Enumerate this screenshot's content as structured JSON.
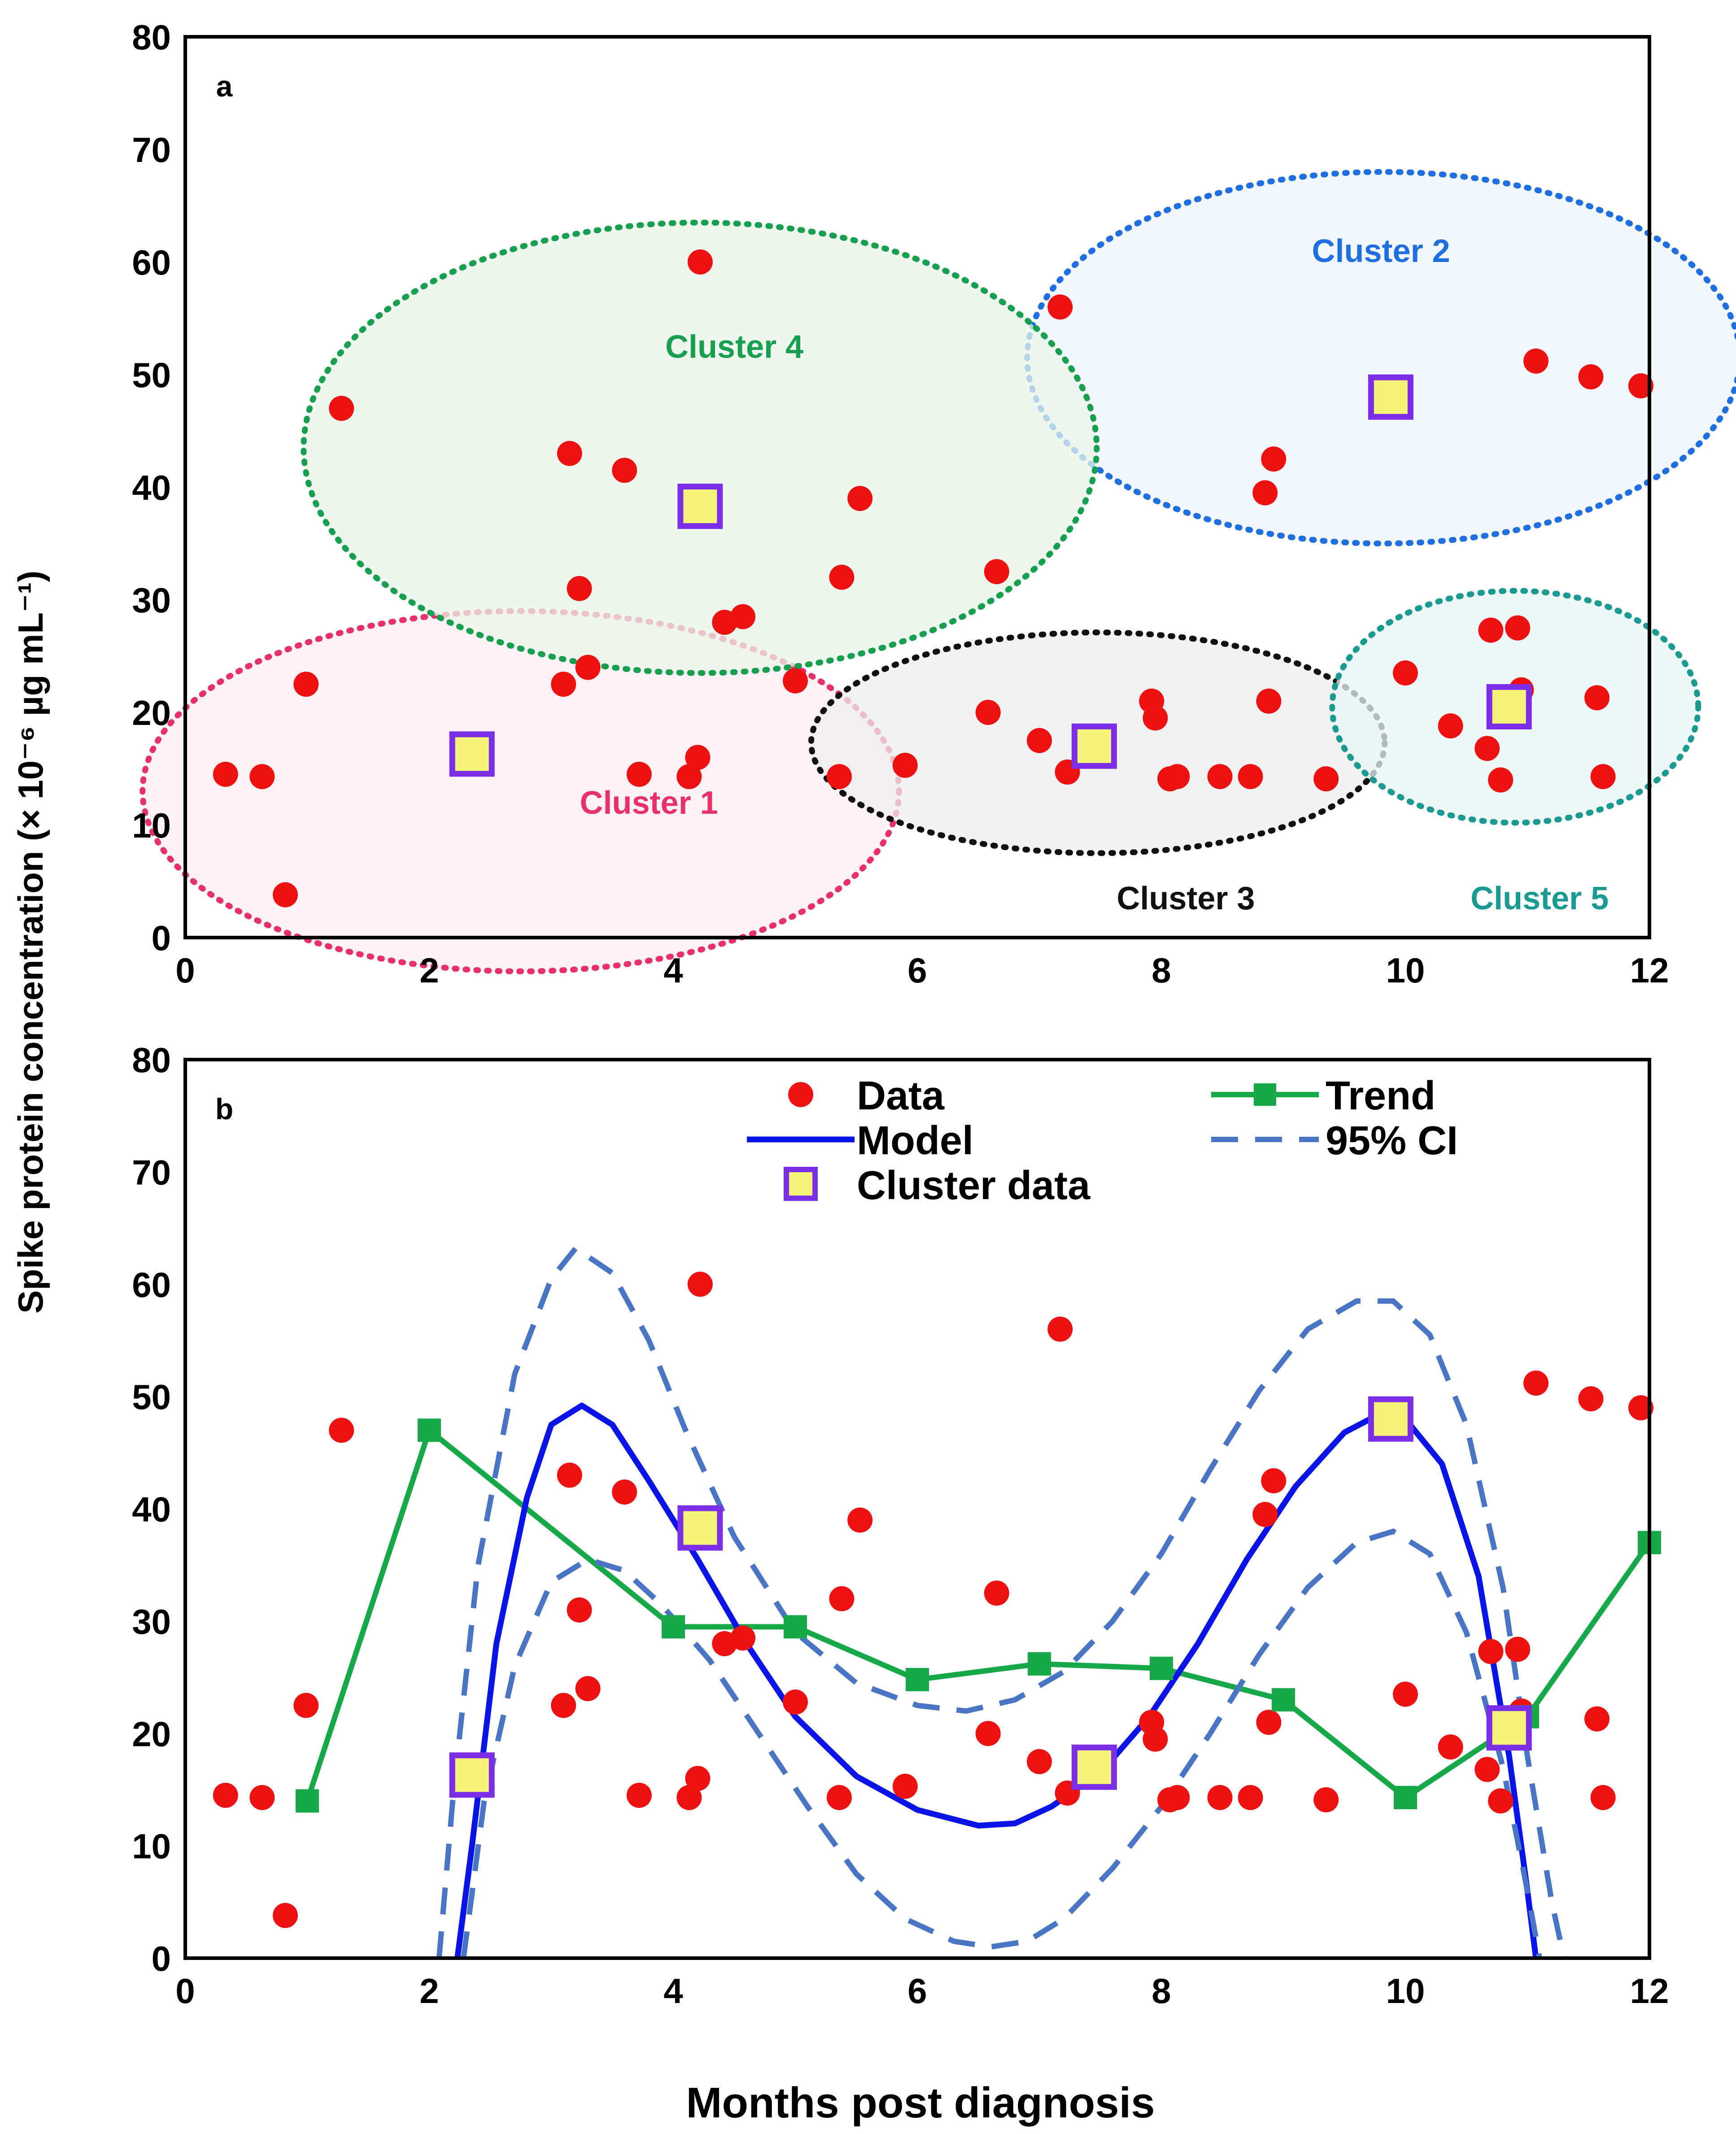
{
  "y_axis_title": "Spike protein concentration (× 10⁻⁶ µg mL⁻¹)",
  "x_axis_title": "Months post diagnosis",
  "colors": {
    "data": "#ee1111",
    "model": "#0a14e6",
    "trend": "#17a84a",
    "ci": "#4a74c4",
    "cluster_fill": "#f5f57a",
    "cluster_border": "#7a2ee6"
  },
  "chart_data": [
    {
      "type": "scatter",
      "panel": "a",
      "xlim": [
        0,
        12
      ],
      "ylim": [
        0,
        80
      ],
      "xticks": [
        "0",
        "2",
        "4",
        "6",
        "8",
        "10",
        "12"
      ],
      "yticks": [
        "0",
        "10",
        "20",
        "30",
        "40",
        "50",
        "60",
        "70",
        "80"
      ],
      "clusters": [
        {
          "label": "Cluster 1",
          "color": "#e8306a",
          "fill": "#fdeef3",
          "cx": 2.75,
          "cy": 13,
          "rx": 3.1,
          "ry": 16,
          "label_x": 3.8,
          "label_y": 12
        },
        {
          "label": "Cluster 2",
          "color": "#1f6fe0",
          "fill": "#eef4fb",
          "cx": 9.82,
          "cy": 51.5,
          "rx": 2.92,
          "ry": 16.5,
          "label_x": 9.8,
          "label_y": 61
        },
        {
          "label": "Cluster 3",
          "color": "#111111",
          "fill": "#eeeeee",
          "cx": 7.48,
          "cy": 17.3,
          "rx": 2.35,
          "ry": 9.8,
          "label_x": 8.2,
          "label_y": 3.5
        },
        {
          "label": "Cluster 4",
          "color": "#18a050",
          "fill": "#eaf5ea",
          "cx": 4.22,
          "cy": 43.5,
          "rx": 3.25,
          "ry": 20,
          "label_x": 4.5,
          "label_y": 52.5
        },
        {
          "label": "Cluster 5",
          "color": "#1a9a90",
          "fill": "#e8f5f3",
          "cx": 10.9,
          "cy": 20.5,
          "rx": 1.5,
          "ry": 10.3,
          "label_x": 11.1,
          "label_y": 3.5
        }
      ],
      "series": [
        {
          "name": "Data",
          "marker": "circle",
          "points": [
            [
              0.33,
              14.5
            ],
            [
              0.63,
              14.3
            ],
            [
              0.82,
              3.8
            ],
            [
              0.99,
              22.5
            ],
            [
              1.28,
              47
            ],
            [
              3.1,
              22.5
            ],
            [
              3.15,
              43
            ],
            [
              3.23,
              31
            ],
            [
              3.3,
              24
            ],
            [
              3.6,
              41.5
            ],
            [
              3.72,
              14.5
            ],
            [
              4.13,
              14.3
            ],
            [
              4.2,
              16
            ],
            [
              4.22,
              60
            ],
            [
              4.42,
              28
            ],
            [
              4.57,
              28.5
            ],
            [
              5.0,
              22.8
            ],
            [
              5.36,
              14.3
            ],
            [
              5.38,
              32
            ],
            [
              5.53,
              39
            ],
            [
              5.9,
              15.3
            ],
            [
              6.58,
              20
            ],
            [
              6.65,
              32.5
            ],
            [
              7.0,
              17.5
            ],
            [
              7.17,
              56
            ],
            [
              7.23,
              14.7
            ],
            [
              7.92,
              21
            ],
            [
              7.95,
              19.5
            ],
            [
              8.07,
              14.1
            ],
            [
              8.13,
              14.3
            ],
            [
              8.48,
              14.3
            ],
            [
              8.73,
              14.3
            ],
            [
              8.85,
              39.5
            ],
            [
              8.88,
              21
            ],
            [
              8.92,
              42.5
            ],
            [
              9.35,
              14.1
            ],
            [
              10.0,
              23.5
            ],
            [
              10.37,
              18.8
            ],
            [
              10.67,
              16.8
            ],
            [
              10.7,
              27.3
            ],
            [
              10.78,
              14
            ],
            [
              10.92,
              27.5
            ],
            [
              10.95,
              22
            ],
            [
              11.07,
              51.2
            ],
            [
              11.52,
              49.8
            ],
            [
              11.57,
              21.3
            ],
            [
              11.62,
              14.3
            ],
            [
              11.93,
              49
            ]
          ]
        },
        {
          "name": "Cluster data",
          "marker": "square",
          "points": [
            [
              2.35,
              16.3
            ],
            [
              4.22,
              38.3
            ],
            [
              7.45,
              17
            ],
            [
              9.88,
              48
            ],
            [
              10.85,
              20.5
            ]
          ]
        }
      ]
    },
    {
      "type": "scatter",
      "panel": "b",
      "xlim": [
        0,
        12
      ],
      "ylim": [
        0,
        80
      ],
      "xticks": [
        "0",
        "2",
        "4",
        "6",
        "8",
        "10",
        "12"
      ],
      "yticks": [
        "0",
        "10",
        "20",
        "30",
        "40",
        "50",
        "60",
        "70",
        "80"
      ],
      "legend": {
        "placement": "top",
        "entries": [
          "Data",
          "Model",
          "Cluster data",
          "Trend",
          "95% CI"
        ]
      },
      "series": [
        {
          "name": "Data",
          "marker": "circle",
          "points": [
            [
              0.33,
              14.5
            ],
            [
              0.63,
              14.3
            ],
            [
              0.82,
              3.8
            ],
            [
              0.99,
              22.5
            ],
            [
              1.28,
              47
            ],
            [
              3.1,
              22.5
            ],
            [
              3.15,
              43
            ],
            [
              3.23,
              31
            ],
            [
              3.3,
              24
            ],
            [
              3.6,
              41.5
            ],
            [
              3.72,
              14.5
            ],
            [
              4.13,
              14.3
            ],
            [
              4.2,
              16
            ],
            [
              4.22,
              60
            ],
            [
              4.42,
              28
            ],
            [
              4.57,
              28.5
            ],
            [
              5.0,
              22.8
            ],
            [
              5.36,
              14.3
            ],
            [
              5.38,
              32
            ],
            [
              5.53,
              39
            ],
            [
              5.9,
              15.3
            ],
            [
              6.58,
              20
            ],
            [
              6.65,
              32.5
            ],
            [
              7.0,
              17.5
            ],
            [
              7.17,
              56
            ],
            [
              7.23,
              14.7
            ],
            [
              7.92,
              21
            ],
            [
              7.95,
              19.5
            ],
            [
              8.07,
              14.1
            ],
            [
              8.13,
              14.3
            ],
            [
              8.48,
              14.3
            ],
            [
              8.73,
              14.3
            ],
            [
              8.85,
              39.5
            ],
            [
              8.88,
              21
            ],
            [
              8.92,
              42.5
            ],
            [
              9.35,
              14.1
            ],
            [
              10.0,
              23.5
            ],
            [
              10.37,
              18.8
            ],
            [
              10.67,
              16.8
            ],
            [
              10.7,
              27.3
            ],
            [
              10.78,
              14
            ],
            [
              10.92,
              27.5
            ],
            [
              10.95,
              22
            ],
            [
              11.07,
              51.2
            ],
            [
              11.52,
              49.8
            ],
            [
              11.57,
              21.3
            ],
            [
              11.62,
              14.3
            ],
            [
              11.93,
              49
            ]
          ]
        },
        {
          "name": "Trend",
          "marker": "square-line",
          "points": [
            [
              1,
              14
            ],
            [
              2,
              47
            ],
            [
              4,
              29.5
            ],
            [
              5,
              29.5
            ],
            [
              6,
              24.8
            ],
            [
              7,
              26.2
            ],
            [
              8,
              25.8
            ],
            [
              9,
              23
            ],
            [
              10,
              14.3
            ],
            [
              11,
              21.5
            ],
            [
              12,
              37
            ]
          ]
        },
        {
          "name": "Model",
          "marker": "line",
          "points": [
            [
              2.23,
              0
            ],
            [
              2.35,
              10
            ],
            [
              2.55,
              28
            ],
            [
              2.8,
              41
            ],
            [
              3.0,
              47.5
            ],
            [
              3.25,
              49.2
            ],
            [
              3.5,
              47.5
            ],
            [
              3.8,
              42.5
            ],
            [
              4.2,
              35.5
            ],
            [
              4.6,
              28
            ],
            [
              5.0,
              21.5
            ],
            [
              5.5,
              16.2
            ],
            [
              6.0,
              13.2
            ],
            [
              6.5,
              11.8
            ],
            [
              6.8,
              12
            ],
            [
              7.1,
              13.5
            ],
            [
              7.5,
              16.5
            ],
            [
              7.9,
              21.5
            ],
            [
              8.3,
              28
            ],
            [
              8.7,
              35.5
            ],
            [
              9.1,
              42
            ],
            [
              9.5,
              46.8
            ],
            [
              9.8,
              48.5
            ],
            [
              10.0,
              48
            ],
            [
              10.3,
              44
            ],
            [
              10.6,
              34
            ],
            [
              10.85,
              18
            ],
            [
              11.0,
              6
            ],
            [
              11.07,
              0
            ]
          ]
        },
        {
          "name": "95% CI upper",
          "marker": "dashed",
          "points": [
            [
              2.08,
              0
            ],
            [
              2.2,
              15
            ],
            [
              2.4,
              35
            ],
            [
              2.7,
              52
            ],
            [
              3.0,
              60.5
            ],
            [
              3.2,
              63.2
            ],
            [
              3.5,
              61
            ],
            [
              3.8,
              55
            ],
            [
              4.1,
              47
            ],
            [
              4.5,
              37.5
            ],
            [
              5.0,
              29
            ],
            [
              5.5,
              24.5
            ],
            [
              6.0,
              22.5
            ],
            [
              6.4,
              22
            ],
            [
              6.8,
              23
            ],
            [
              7.2,
              25.5
            ],
            [
              7.6,
              30
            ],
            [
              8.0,
              36
            ],
            [
              8.4,
              43.5
            ],
            [
              8.8,
              50.5
            ],
            [
              9.2,
              56
            ],
            [
              9.6,
              58.5
            ],
            [
              9.9,
              58.5
            ],
            [
              10.2,
              55.5
            ],
            [
              10.5,
              47.5
            ],
            [
              10.8,
              33
            ],
            [
              11.0,
              18
            ],
            [
              11.2,
              5
            ],
            [
              11.3,
              0
            ]
          ]
        },
        {
          "name": "95% CI lower",
          "marker": "dashed",
          "points": [
            [
              2.28,
              0
            ],
            [
              2.45,
              14
            ],
            [
              2.7,
              26
            ],
            [
              3.0,
              33.5
            ],
            [
              3.3,
              35.5
            ],
            [
              3.6,
              34.5
            ],
            [
              3.9,
              31.5
            ],
            [
              4.3,
              26.5
            ],
            [
              4.7,
              20
            ],
            [
              5.1,
              13.5
            ],
            [
              5.5,
              7.5
            ],
            [
              5.9,
              3.5
            ],
            [
              6.3,
              1.5
            ],
            [
              6.6,
              1
            ],
            [
              6.9,
              1.5
            ],
            [
              7.2,
              3.5
            ],
            [
              7.6,
              8
            ],
            [
              8.0,
              13.5
            ],
            [
              8.4,
              20
            ],
            [
              8.8,
              27
            ],
            [
              9.2,
              33
            ],
            [
              9.6,
              37
            ],
            [
              9.9,
              38
            ],
            [
              10.2,
              36
            ],
            [
              10.5,
              29
            ],
            [
              10.8,
              17
            ],
            [
              11.0,
              6
            ],
            [
              11.1,
              0
            ]
          ]
        },
        {
          "name": "Cluster data",
          "marker": "square",
          "points": [
            [
              2.35,
              16.3
            ],
            [
              4.22,
              38.3
            ],
            [
              7.45,
              17
            ],
            [
              9.88,
              48
            ],
            [
              10.85,
              20.5
            ]
          ]
        }
      ]
    }
  ]
}
